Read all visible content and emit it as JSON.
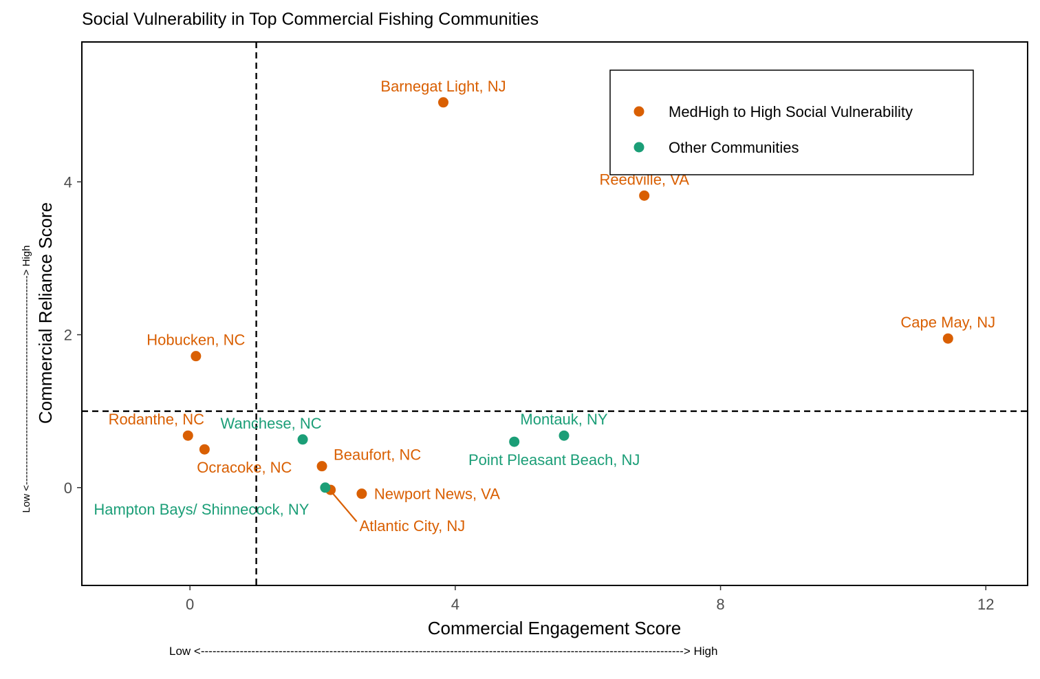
{
  "chart_data": {
    "type": "scatter",
    "title": "Social Vulnerability in Top Commercial Fishing Communities",
    "xlabel": "Commercial Engagement Score",
    "ylabel": "Commercial Reliance Score",
    "x_direction_label": "Low <----------------------------------------------------------------------------------------------------------------------------> High",
    "y_direction_label": "Low <-------------------------------------------------------------> High",
    "xlim": [
      -1.63,
      12.63
    ],
    "ylim": [
      -1.28,
      5.83
    ],
    "x_ticks": [
      0,
      4,
      8,
      12
    ],
    "y_ticks": [
      0,
      2,
      4
    ],
    "reference_lines": {
      "x": 1,
      "y": 1,
      "style": "dashed"
    },
    "grid": false,
    "legend_position": "top-right",
    "series": [
      {
        "name": "MedHigh to High Social Vulnerability",
        "color": "#d95f02",
        "points": [
          {
            "label": "Barnegat Light, NJ",
            "x": 3.82,
            "y": 5.04,
            "label_pos": "above"
          },
          {
            "label": "Reedville, VA",
            "x": 6.85,
            "y": 3.82,
            "label_pos": "above"
          },
          {
            "label": "Cape May, NJ",
            "x": 11.43,
            "y": 1.95,
            "label_pos": "above"
          },
          {
            "label": "Hobucken, NC",
            "x": 0.09,
            "y": 1.72,
            "label_pos": "above"
          },
          {
            "label": "Rodanthe, NC",
            "x": -0.03,
            "y": 0.68,
            "label_pos": "above-left"
          },
          {
            "label": "Ocracoke, NC",
            "x": 0.22,
            "y": 0.5,
            "label_pos": "below-right"
          },
          {
            "label": "Beaufort, NC",
            "x": 1.99,
            "y": 0.28,
            "label_pos": "right-up"
          },
          {
            "label": "Newport News, VA",
            "x": 2.59,
            "y": -0.08,
            "label_pos": "right"
          },
          {
            "label": "Atlantic City, NJ",
            "x": 2.12,
            "y": -0.03,
            "label_pos": "leader-below-right"
          }
        ]
      },
      {
        "name": "Other Communities",
        "color": "#1b9e77",
        "points": [
          {
            "label": "Wanchese, NC",
            "x": 1.7,
            "y": 0.63,
            "label_pos": "above-left"
          },
          {
            "label": "Point Pleasant Beach, NJ",
            "x": 4.89,
            "y": 0.6,
            "label_pos": "below-right"
          },
          {
            "label": "Montauk, NY",
            "x": 5.64,
            "y": 0.68,
            "label_pos": "above"
          },
          {
            "label": "Hampton Bays/ Shinnecock, NY",
            "x": 2.04,
            "y": 0.0,
            "label_pos": "below-left"
          }
        ]
      }
    ]
  }
}
